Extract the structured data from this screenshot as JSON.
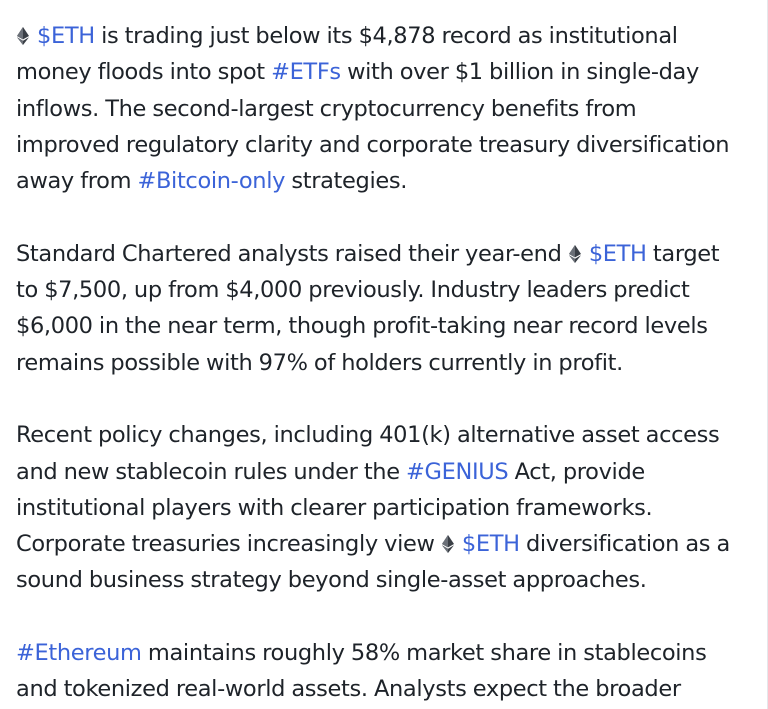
{
  "post": {
    "colors": {
      "text": "#1e2329",
      "link": "#3b63d8",
      "icon": "#3a3f46"
    },
    "icon_name": "ethereum-icon",
    "p1": {
      "cash1": "$ETH",
      "t1": " is trading just below its $4,878 record as institutional money floods into spot ",
      "tag1": "#ETFs",
      "t2": " with over $1 billion in single-day inflows. The second-largest cryptocurrency benefits from improved regulatory clarity and corporate treasury diversification away from ",
      "tag2": "#Bitcoin-only",
      "t3": " strategies."
    },
    "p2": {
      "t1": "Standard Chartered analysts raised their year-end ",
      "cash1": "$ETH",
      "t2": " target to $7,500, up from $4,000 previously. Industry leaders predict $6,000 in the near term, though profit-taking near record levels remains possible with 97% of holders currently in profit."
    },
    "p3": {
      "t1": "Recent policy changes, including 401(k) alternative asset access and new stablecoin rules under the ",
      "tag1": "#GENIUS",
      "t2": " Act, provide institutional players with clearer participation frameworks. Corporate treasuries increasingly view ",
      "cash1": "$ETH",
      "t3": " diversification as a sound business strategy beyond single-asset approaches."
    },
    "p4": {
      "tag1": "#Ethereum",
      "t1": " maintains roughly 58% market share in stablecoins and tokenized real-world assets. Analysts expect the broader"
    }
  }
}
